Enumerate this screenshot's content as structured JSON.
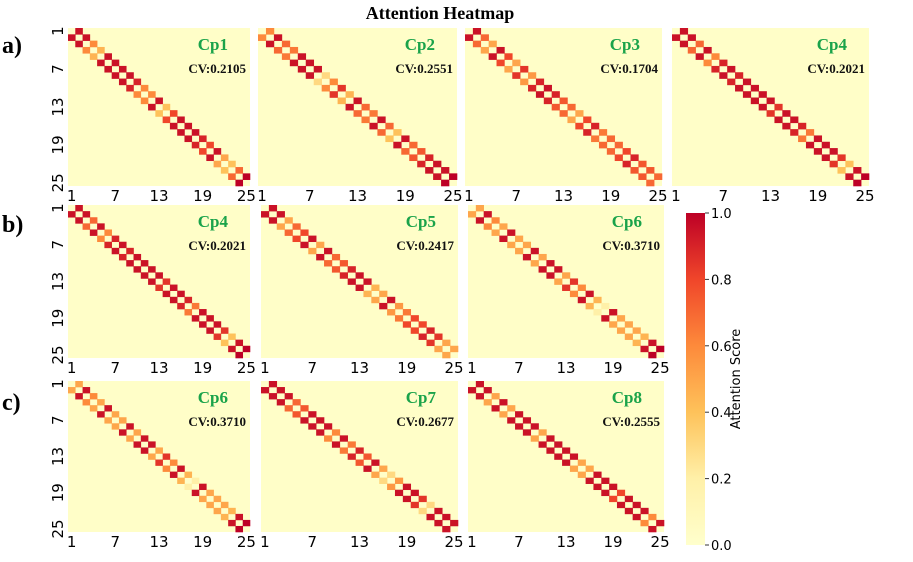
{
  "chart_data": {
    "type": "heatmap",
    "title": "Attention Heatmap",
    "tick_labels": [
      "1",
      "7",
      "13",
      "19",
      "25"
    ],
    "grid_size": 25,
    "colorbar": {
      "label": "Attention Score",
      "range": [
        0.0,
        1.0
      ],
      "ticks": [
        "0.0",
        "0.2",
        "0.4",
        "0.6",
        "0.8",
        "1.0"
      ],
      "colormap": [
        "#ffffcc",
        "#fff0a8",
        "#fec25a",
        "#fd8a3b",
        "#f0462a",
        "#bd0026"
      ]
    },
    "rows": [
      {
        "label": "a)",
        "panels": [
          {
            "name": "Cp1",
            "cv": "CV:0.2105",
            "adjacent_scores": [
              0.95,
              0.95,
              0.6,
              0.45,
              0.95,
              0.95,
              0.95,
              0.95,
              0.9,
              0.6,
              0.6,
              0.95,
              0.4,
              0.8,
              0.95,
              0.95,
              0.95,
              0.9,
              0.8,
              0.95,
              0.5,
              0.4,
              0.7,
              1.0
            ]
          },
          {
            "name": "Cp2",
            "cv": "CV:0.2551",
            "adjacent_scores": [
              0.6,
              0.95,
              0.7,
              0.65,
              0.95,
              0.95,
              0.95,
              0.3,
              0.6,
              0.85,
              0.45,
              0.95,
              0.7,
              0.65,
              0.95,
              0.7,
              0.4,
              0.95,
              0.7,
              0.75,
              0.9,
              0.95,
              0.95,
              1.0
            ]
          },
          {
            "name": "Cp3",
            "cv": "CV:0.1704",
            "adjacent_scores": [
              0.95,
              0.7,
              0.5,
              0.95,
              0.8,
              0.5,
              0.85,
              0.55,
              0.9,
              0.95,
              0.9,
              0.75,
              0.7,
              0.5,
              0.8,
              0.9,
              0.65,
              0.7,
              0.7,
              0.8,
              0.9,
              0.75,
              0.75,
              0.7
            ]
          },
          {
            "name": "Cp4",
            "cv": "CV:0.2021",
            "adjacent_scores": [
              0.95,
              0.95,
              0.7,
              0.95,
              0.6,
              0.9,
              0.95,
              0.9,
              0.95,
              0.95,
              0.95,
              0.95,
              0.85,
              0.95,
              0.95,
              0.9,
              0.65,
              0.95,
              0.95,
              0.95,
              0.85,
              0.4,
              0.95,
              1.0
            ]
          }
        ]
      },
      {
        "label": "b)",
        "panels": [
          {
            "name": "Cp4",
            "cv": "CV:0.2021",
            "adjacent_scores": [
              0.95,
              0.95,
              0.7,
              0.95,
              0.6,
              0.9,
              0.95,
              0.9,
              0.95,
              0.95,
              0.95,
              0.95,
              0.85,
              0.95,
              0.95,
              0.9,
              0.65,
              0.95,
              0.95,
              0.95,
              0.85,
              0.4,
              0.95,
              1.0
            ]
          },
          {
            "name": "Cp5",
            "cv": "CV:0.2417",
            "adjacent_scores": [
              0.95,
              0.95,
              0.5,
              0.7,
              0.8,
              0.95,
              0.5,
              0.95,
              0.7,
              0.75,
              0.9,
              0.95,
              0.95,
              0.45,
              0.5,
              0.95,
              0.55,
              0.65,
              0.8,
              0.8,
              0.9,
              0.85,
              0.5,
              0.5
            ]
          },
          {
            "name": "Cp6",
            "cv": "CV:0.3710",
            "adjacent_scores": [
              0.5,
              0.95,
              0.6,
              0.5,
              0.95,
              0.5,
              0.5,
              0.95,
              0.5,
              0.95,
              0.95,
              0.5,
              0.85,
              0.6,
              0.95,
              0.45,
              0.2,
              0.95,
              0.5,
              0.5,
              0.5,
              0.45,
              0.95,
              1.0
            ]
          }
        ]
      },
      {
        "label": "c)",
        "panels": [
          {
            "name": "Cp6",
            "cv": "CV:0.3710",
            "adjacent_scores": [
              0.5,
              0.95,
              0.6,
              0.5,
              0.95,
              0.5,
              0.5,
              0.95,
              0.5,
              0.95,
              0.95,
              0.5,
              0.85,
              0.6,
              0.95,
              0.45,
              0.2,
              0.95,
              0.5,
              0.5,
              0.5,
              0.45,
              0.95,
              1.0
            ]
          },
          {
            "name": "Cp7",
            "cv": "CV:0.2677",
            "adjacent_scores": [
              0.95,
              0.95,
              0.95,
              0.7,
              0.75,
              0.95,
              0.95,
              0.95,
              0.6,
              0.95,
              0.65,
              0.9,
              0.75,
              0.95,
              0.5,
              0.3,
              0.55,
              0.95,
              0.95,
              0.85,
              0.3,
              0.95,
              0.95,
              0.95
            ]
          },
          {
            "name": "Cp8",
            "cv": "CV:0.2555",
            "adjacent_scores": [
              0.95,
              0.95,
              0.5,
              0.95,
              0.5,
              0.95,
              0.95,
              0.95,
              0.5,
              0.95,
              0.95,
              0.95,
              0.95,
              0.5,
              0.5,
              0.95,
              0.95,
              0.95,
              0.8,
              0.95,
              0.95,
              0.95,
              0.6,
              0.95
            ]
          }
        ]
      }
    ],
    "colors": {
      "panel_label": "#1aa34a",
      "background": "#ffffcc"
    }
  }
}
